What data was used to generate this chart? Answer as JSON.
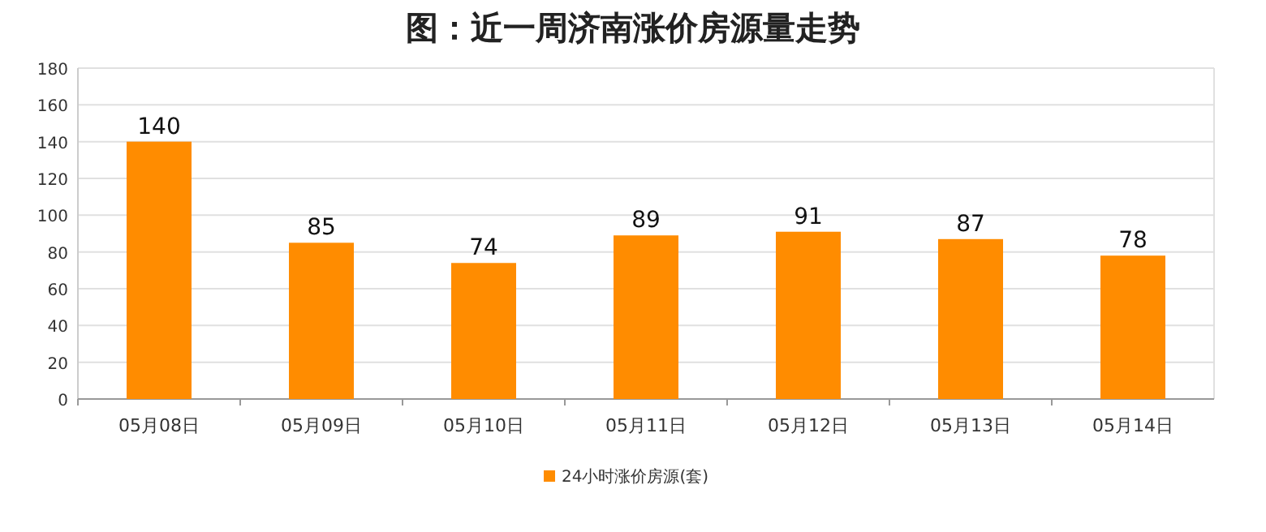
{
  "chart_data": {
    "type": "bar",
    "title": "图：近一周济南涨价房源量走势",
    "categories": [
      "05月08日",
      "05月09日",
      "05月10日",
      "05月11日",
      "05月12日",
      "05月13日",
      "05月14日"
    ],
    "series": [
      {
        "name": "24小时涨价房源(套)",
        "color": "#ff8c00",
        "values": [
          140,
          85,
          74,
          89,
          91,
          87,
          78
        ]
      }
    ],
    "ylim": [
      0,
      180
    ],
    "yticks": [
      0,
      20,
      40,
      60,
      80,
      100,
      120,
      140,
      160,
      180
    ],
    "grid": "y",
    "legend": "bottom",
    "data_labels": true
  }
}
